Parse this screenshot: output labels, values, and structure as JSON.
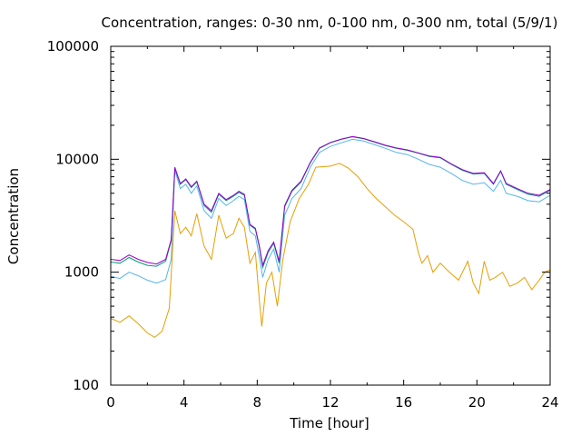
{
  "chart_data": {
    "type": "line",
    "title": "Concentration, ranges: 0-30 nm, 0-100 nm, 0-300 nm, total (5/9/1)",
    "xlabel": "Time [hour]",
    "ylabel": "Concentration",
    "xlim": [
      0,
      24
    ],
    "ylim": [
      100,
      100000
    ],
    "yscale": "log",
    "grid": false,
    "legend": "none",
    "x_ticks": [
      0,
      4,
      8,
      12,
      16,
      20,
      24
    ],
    "x_tick_labels": [
      "0",
      "4",
      "8",
      "12",
      "16",
      "20",
      "24"
    ],
    "y_ticks": [
      100,
      1000,
      10000,
      100000
    ],
    "y_tick_labels": [
      "100",
      "1000",
      "10000",
      "100000"
    ],
    "series": [
      {
        "color": "#e69f00",
        "points": [
          [
            0,
            390
          ],
          [
            0.5,
            360
          ],
          [
            1,
            410
          ],
          [
            1.5,
            350
          ],
          [
            2,
            290
          ],
          [
            2.4,
            265
          ],
          [
            2.8,
            300
          ],
          [
            3.2,
            480
          ],
          [
            3.5,
            3500
          ],
          [
            3.8,
            2200
          ],
          [
            4.1,
            2500
          ],
          [
            4.4,
            2100
          ],
          [
            4.7,
            3300
          ],
          [
            5.1,
            1700
          ],
          [
            5.5,
            1300
          ],
          [
            5.9,
            3200
          ],
          [
            6.3,
            2000
          ],
          [
            6.7,
            2200
          ],
          [
            7,
            3000
          ],
          [
            7.3,
            2500
          ],
          [
            7.6,
            1200
          ],
          [
            7.9,
            1500
          ],
          [
            8.1,
            600
          ],
          [
            8.25,
            330
          ],
          [
            8.5,
            800
          ],
          [
            8.8,
            1000
          ],
          [
            9.1,
            500
          ],
          [
            9.4,
            1300
          ],
          [
            9.8,
            2800
          ],
          [
            10.3,
            4500
          ],
          [
            10.8,
            6000
          ],
          [
            11.2,
            8500
          ],
          [
            12,
            8700
          ],
          [
            12.5,
            9200
          ],
          [
            13,
            8300
          ],
          [
            13.5,
            7000
          ],
          [
            14,
            5500
          ],
          [
            14.5,
            4500
          ],
          [
            15,
            3800
          ],
          [
            15.5,
            3200
          ],
          [
            16,
            2800
          ],
          [
            16.5,
            2400
          ],
          [
            16.8,
            1500
          ],
          [
            17,
            1200
          ],
          [
            17.3,
            1400
          ],
          [
            17.6,
            1000
          ],
          [
            18,
            1200
          ],
          [
            18.5,
            1000
          ],
          [
            19,
            850
          ],
          [
            19.5,
            1250
          ],
          [
            19.8,
            800
          ],
          [
            20.1,
            650
          ],
          [
            20.4,
            1250
          ],
          [
            20.7,
            850
          ],
          [
            21,
            900
          ],
          [
            21.4,
            1000
          ],
          [
            21.8,
            750
          ],
          [
            22.2,
            800
          ],
          [
            22.6,
            900
          ],
          [
            23,
            700
          ],
          [
            23.4,
            850
          ],
          [
            23.7,
            1000
          ],
          [
            24,
            1050
          ]
        ]
      },
      {
        "color": "#56b4e9",
        "points": [
          [
            0,
            920
          ],
          [
            0.5,
            880
          ],
          [
            1,
            1000
          ],
          [
            1.5,
            930
          ],
          [
            2,
            850
          ],
          [
            2.5,
            800
          ],
          [
            3,
            860
          ],
          [
            3.3,
            1300
          ],
          [
            3.5,
            8000
          ],
          [
            3.8,
            5500
          ],
          [
            4.1,
            6000
          ],
          [
            4.4,
            5000
          ],
          [
            4.7,
            5800
          ],
          [
            5.1,
            3500
          ],
          [
            5.5,
            3000
          ],
          [
            5.9,
            4500
          ],
          [
            6.3,
            3900
          ],
          [
            6.7,
            4300
          ],
          [
            7,
            4700
          ],
          [
            7.3,
            4400
          ],
          [
            7.6,
            2300
          ],
          [
            7.9,
            2100
          ],
          [
            8.1,
            1400
          ],
          [
            8.3,
            900
          ],
          [
            8.6,
            1300
          ],
          [
            8.9,
            1600
          ],
          [
            9.2,
            1000
          ],
          [
            9.5,
            3200
          ],
          [
            9.9,
            4500
          ],
          [
            10.4,
            5500
          ],
          [
            10.9,
            8500
          ],
          [
            11.4,
            11500
          ],
          [
            12,
            13000
          ],
          [
            12.6,
            14000
          ],
          [
            13.2,
            15000
          ],
          [
            13.8,
            14500
          ],
          [
            14.4,
            13500
          ],
          [
            15,
            12500
          ],
          [
            15.6,
            11500
          ],
          [
            16.2,
            11000
          ],
          [
            16.8,
            10000
          ],
          [
            17.4,
            9000
          ],
          [
            18,
            8500
          ],
          [
            18.6,
            7500
          ],
          [
            19.2,
            6500
          ],
          [
            19.8,
            6000
          ],
          [
            20.4,
            6200
          ],
          [
            20.9,
            5200
          ],
          [
            21.3,
            6500
          ],
          [
            21.6,
            5000
          ],
          [
            22.2,
            4700
          ],
          [
            22.8,
            4300
          ],
          [
            23.4,
            4200
          ],
          [
            24,
            4800
          ]
        ]
      },
      {
        "color": "#009e73",
        "points": [
          [
            0,
            1230
          ],
          [
            0.5,
            1200
          ],
          [
            1,
            1350
          ],
          [
            1.5,
            1230
          ],
          [
            2,
            1150
          ],
          [
            2.5,
            1130
          ],
          [
            3,
            1250
          ],
          [
            3.3,
            1900
          ],
          [
            3.5,
            8300
          ],
          [
            3.8,
            6000
          ],
          [
            4.1,
            6600
          ],
          [
            4.4,
            5600
          ],
          [
            4.7,
            6300
          ],
          [
            5.1,
            3900
          ],
          [
            5.5,
            3400
          ],
          [
            5.9,
            4900
          ],
          [
            6.3,
            4300
          ],
          [
            6.7,
            4700
          ],
          [
            7,
            5100
          ],
          [
            7.3,
            4800
          ],
          [
            7.6,
            2600
          ],
          [
            7.9,
            2400
          ],
          [
            8.1,
            1700
          ],
          [
            8.3,
            1100
          ],
          [
            8.6,
            1500
          ],
          [
            8.9,
            1800
          ],
          [
            9.2,
            1200
          ],
          [
            9.5,
            3800
          ],
          [
            9.9,
            5200
          ],
          [
            10.4,
            6300
          ],
          [
            10.9,
            9300
          ],
          [
            11.4,
            12500
          ],
          [
            12,
            14000
          ],
          [
            12.6,
            15000
          ],
          [
            13.2,
            15800
          ],
          [
            13.8,
            15200
          ],
          [
            14.4,
            14200
          ],
          [
            15,
            13200
          ],
          [
            15.6,
            12500
          ],
          [
            16.2,
            12000
          ],
          [
            16.8,
            11300
          ],
          [
            17.4,
            10600
          ],
          [
            18,
            10300
          ],
          [
            18.6,
            9000
          ],
          [
            19.2,
            8000
          ],
          [
            19.8,
            7400
          ],
          [
            20.4,
            7500
          ],
          [
            20.9,
            6000
          ],
          [
            21.3,
            7800
          ],
          [
            21.6,
            6000
          ],
          [
            22.2,
            5400
          ],
          [
            22.8,
            4900
          ],
          [
            23.4,
            4700
          ],
          [
            24,
            5300
          ]
        ]
      },
      {
        "color": "#9400d3",
        "points": [
          [
            0,
            1300
          ],
          [
            0.5,
            1270
          ],
          [
            1,
            1420
          ],
          [
            1.5,
            1300
          ],
          [
            2,
            1220
          ],
          [
            2.5,
            1180
          ],
          [
            3,
            1300
          ],
          [
            3.3,
            1950
          ],
          [
            3.5,
            8500
          ],
          [
            3.8,
            6100
          ],
          [
            4.1,
            6700
          ],
          [
            4.4,
            5700
          ],
          [
            4.7,
            6400
          ],
          [
            5.1,
            4000
          ],
          [
            5.5,
            3500
          ],
          [
            5.9,
            5000
          ],
          [
            6.3,
            4400
          ],
          [
            6.7,
            4800
          ],
          [
            7,
            5200
          ],
          [
            7.3,
            4900
          ],
          [
            7.6,
            2650
          ],
          [
            7.9,
            2450
          ],
          [
            8.1,
            1750
          ],
          [
            8.3,
            1150
          ],
          [
            8.6,
            1550
          ],
          [
            8.9,
            1850
          ],
          [
            9.2,
            1250
          ],
          [
            9.5,
            3900
          ],
          [
            9.9,
            5300
          ],
          [
            10.4,
            6400
          ],
          [
            10.9,
            9400
          ],
          [
            11.4,
            12600
          ],
          [
            12,
            14100
          ],
          [
            12.6,
            15100
          ],
          [
            13.2,
            15900
          ],
          [
            13.8,
            15300
          ],
          [
            14.4,
            14300
          ],
          [
            15,
            13300
          ],
          [
            15.6,
            12600
          ],
          [
            16.2,
            12100
          ],
          [
            16.8,
            11400
          ],
          [
            17.4,
            10700
          ],
          [
            18,
            10400
          ],
          [
            18.6,
            9100
          ],
          [
            19.2,
            8100
          ],
          [
            19.8,
            7500
          ],
          [
            20.4,
            7600
          ],
          [
            20.9,
            6100
          ],
          [
            21.3,
            7900
          ],
          [
            21.6,
            6100
          ],
          [
            22.2,
            5500
          ],
          [
            22.8,
            5000
          ],
          [
            23.4,
            4800
          ],
          [
            24,
            5400
          ]
        ]
      }
    ]
  }
}
